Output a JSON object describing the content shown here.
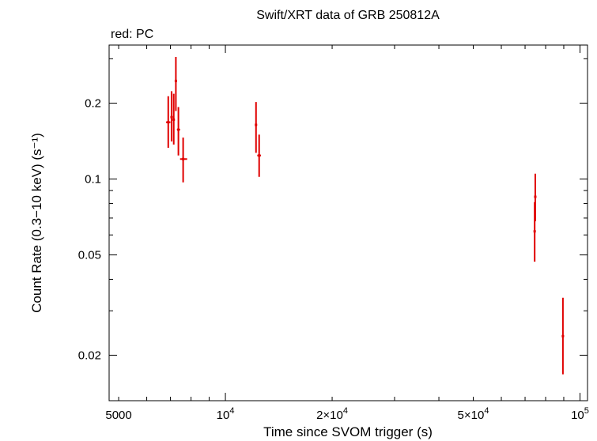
{
  "chart_data": {
    "type": "scatter",
    "title": "Swift/XRT data of GRB 250812A",
    "legend_text": "red: PC",
    "xlabel": "Time since SVOM trigger (s)",
    "ylabel": "Count Rate (0.3−10 keV) (s⁻¹)",
    "x_scale": "log",
    "y_scale": "log",
    "xlim": [
      4700,
      105000
    ],
    "ylim": [
      0.0132,
      0.34
    ],
    "x_tick_labels": [
      {
        "value": 5000,
        "base": "5000",
        "exp": ""
      },
      {
        "value": 10000,
        "base": "10",
        "exp": "4"
      },
      {
        "value": 20000,
        "base": "2×10",
        "exp": "4"
      },
      {
        "value": 50000,
        "base": "5×10",
        "exp": "4"
      },
      {
        "value": 100000,
        "base": "10",
        "exp": "5"
      }
    ],
    "y_tick_labels": [
      {
        "value": 0.02,
        "label": "0.02"
      },
      {
        "value": 0.05,
        "label": "0.05"
      },
      {
        "value": 0.1,
        "label": "0.1"
      },
      {
        "value": 0.2,
        "label": "0.2"
      }
    ],
    "color": "#e00000",
    "series": [
      {
        "name": "PC",
        "points": [
          {
            "x": 6900,
            "xlo": 6800,
            "xhi": 7000,
            "y": 0.168,
            "ylo": 0.133,
            "yhi": 0.213
          },
          {
            "x": 7050,
            "xlo": 7000,
            "xhi": 7100,
            "y": 0.176,
            "ylo": 0.141,
            "yhi": 0.223
          },
          {
            "x": 7150,
            "xlo": 7100,
            "xhi": 7200,
            "y": 0.172,
            "ylo": 0.137,
            "yhi": 0.218
          },
          {
            "x": 7250,
            "xlo": 7200,
            "xhi": 7300,
            "y": 0.245,
            "ylo": 0.186,
            "yhi": 0.305
          },
          {
            "x": 7370,
            "xlo": 7300,
            "xhi": 7450,
            "y": 0.157,
            "ylo": 0.124,
            "yhi": 0.193
          },
          {
            "x": 7600,
            "xlo": 7450,
            "xhi": 7800,
            "y": 0.12,
            "ylo": 0.097,
            "yhi": 0.146
          },
          {
            "x": 12200,
            "xlo": 12150,
            "xhi": 12250,
            "y": 0.164,
            "ylo": 0.127,
            "yhi": 0.202
          },
          {
            "x": 12450,
            "xlo": 12300,
            "xhi": 12600,
            "y": 0.124,
            "ylo": 0.102,
            "yhi": 0.15
          },
          {
            "x": 74500,
            "xlo": 74300,
            "xhi": 74700,
            "y": 0.062,
            "ylo": 0.047,
            "yhi": 0.081
          },
          {
            "x": 74800,
            "xlo": 74600,
            "xhi": 75000,
            "y": 0.085,
            "ylo": 0.068,
            "yhi": 0.105
          },
          {
            "x": 89500,
            "xlo": 89000,
            "xhi": 90000,
            "y": 0.0238,
            "ylo": 0.0168,
            "yhi": 0.0338
          }
        ]
      }
    ]
  }
}
